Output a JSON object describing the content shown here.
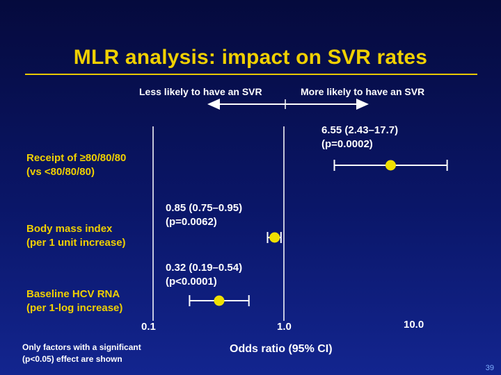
{
  "title": "MLR analysis: impact on SVR rates",
  "direction": {
    "less": "Less likely to have an SVR",
    "more": "More likely to have an SVR"
  },
  "footnote": {
    "line1": "Only factors with a significant",
    "line2": "(p<0.05) effect are shown"
  },
  "page_number": "39",
  "colors": {
    "title": "#f0d000",
    "factor_label": "#f0d000",
    "marker": "#f0e000",
    "line": "#ffffff",
    "page_number": "#7fb0ff"
  },
  "chart_data": {
    "type": "forest",
    "xlabel": "Odds ratio (95% CI)",
    "xscale": "log",
    "xlim": [
      0.1,
      10.0
    ],
    "ticks": [
      {
        "value": 0.1,
        "label": "0.1"
      },
      {
        "value": 1.0,
        "label": "1.0"
      },
      {
        "value": 10.0,
        "label": "10.0"
      }
    ],
    "reference_line": 1.0,
    "rows": [
      {
        "label_line1": "Receipt of ≥80/80/80",
        "label_line2": "(vs <80/80/80)",
        "or": 6.55,
        "lower": 2.43,
        "upper": 17.7,
        "ci_text": "6.55 (2.43–17.7)",
        "p_text": "(p=0.0002)"
      },
      {
        "label_line1": "Body mass index",
        "label_line2": "(per 1 unit increase)",
        "or": 0.85,
        "lower": 0.75,
        "upper": 0.95,
        "ci_text": "0.85 (0.75–0.95)",
        "p_text": "(p=0.0062)"
      },
      {
        "label_line1": "Baseline HCV RNA",
        "label_line2": "(per 1-log increase)",
        "or": 0.32,
        "lower": 0.19,
        "upper": 0.54,
        "ci_text": "0.32 (0.19–0.54)",
        "p_text": "(p<0.0001)"
      }
    ]
  }
}
